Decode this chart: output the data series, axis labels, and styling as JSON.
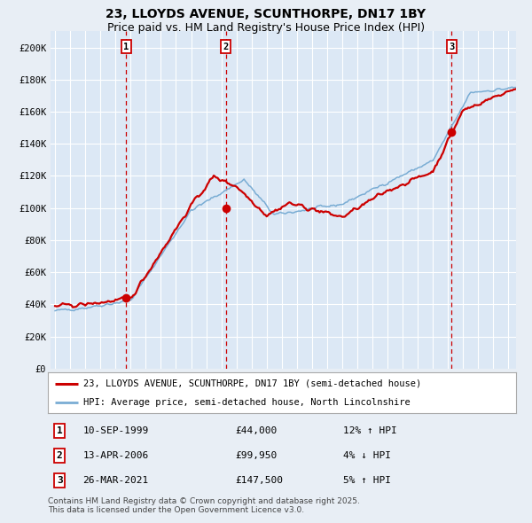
{
  "title": "23, LLOYDS AVENUE, SCUNTHORPE, DN17 1BY",
  "subtitle": "Price paid vs. HM Land Registry's House Price Index (HPI)",
  "background_color": "#e8eef5",
  "plot_bg_color": "#dce8f5",
  "grid_color": "#ffffff",
  "ylim": [
    0,
    210000
  ],
  "yticks": [
    0,
    20000,
    40000,
    60000,
    80000,
    100000,
    120000,
    140000,
    160000,
    180000,
    200000
  ],
  "ytick_labels": [
    "£0",
    "£20K",
    "£40K",
    "£60K",
    "£80K",
    "£100K",
    "£120K",
    "£140K",
    "£160K",
    "£180K",
    "£200K"
  ],
  "x_start_year": 1995,
  "x_end_year": 2025,
  "sale_year_floats": [
    1999.706,
    2006.292,
    2021.236
  ],
  "sale_prices": [
    44000,
    99950,
    147500
  ],
  "sale_labels": [
    "1",
    "2",
    "3"
  ],
  "sale_date_strs": [
    "10-SEP-1999",
    "13-APR-2006",
    "26-MAR-2021"
  ],
  "sale_price_strs": [
    "£44,000",
    "£99,950",
    "£147,500"
  ],
  "sale_hpi_strs": [
    "12% ↑ HPI",
    "4% ↓ HPI",
    "5% ↑ HPI"
  ],
  "line_color_price": "#cc0000",
  "line_color_hpi": "#7aadd4",
  "dashed_line_color": "#cc0000",
  "marker_color": "#cc0000",
  "legend_label_price": "23, LLOYDS AVENUE, SCUNTHORPE, DN17 1BY (semi-detached house)",
  "legend_label_hpi": "HPI: Average price, semi-detached house, North Lincolnshire",
  "footer_text": "Contains HM Land Registry data © Crown copyright and database right 2025.\nThis data is licensed under the Open Government Licence v3.0.",
  "title_fontsize": 10,
  "subtitle_fontsize": 9,
  "tick_fontsize": 7.5,
  "legend_fontsize": 7.5,
  "footer_fontsize": 6.5
}
